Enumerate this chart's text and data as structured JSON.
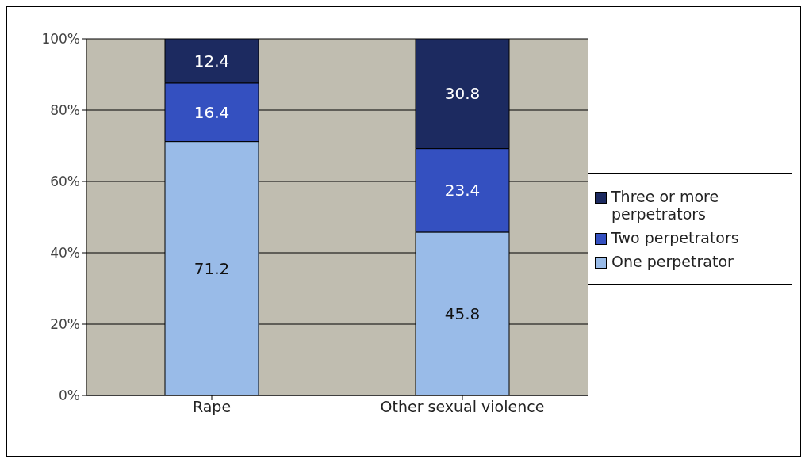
{
  "chart_data": {
    "type": "bar",
    "stacked": true,
    "categories": [
      "Rape",
      "Other sexual violence"
    ],
    "series": [
      {
        "name": "One perpetrator",
        "color": "#99bbe8",
        "values": [
          71.2,
          45.8
        ]
      },
      {
        "name": "Two perpetrators",
        "color": "#3450c0",
        "values": [
          16.4,
          23.4
        ]
      },
      {
        "name": "Three or more perpetrators",
        "color": "#1c2a60",
        "values": [
          12.4,
          30.8
        ]
      }
    ],
    "ylim": [
      0,
      100
    ],
    "yticks": [
      {
        "value": 0,
        "label": "0%"
      },
      {
        "value": 20,
        "label": "20%"
      },
      {
        "value": 40,
        "label": "40%"
      },
      {
        "value": 60,
        "label": "60%"
      },
      {
        "value": 80,
        "label": "80%"
      },
      {
        "value": 100,
        "label": "100%"
      }
    ],
    "grid": "y",
    "legend": "right",
    "data_labels": true
  }
}
